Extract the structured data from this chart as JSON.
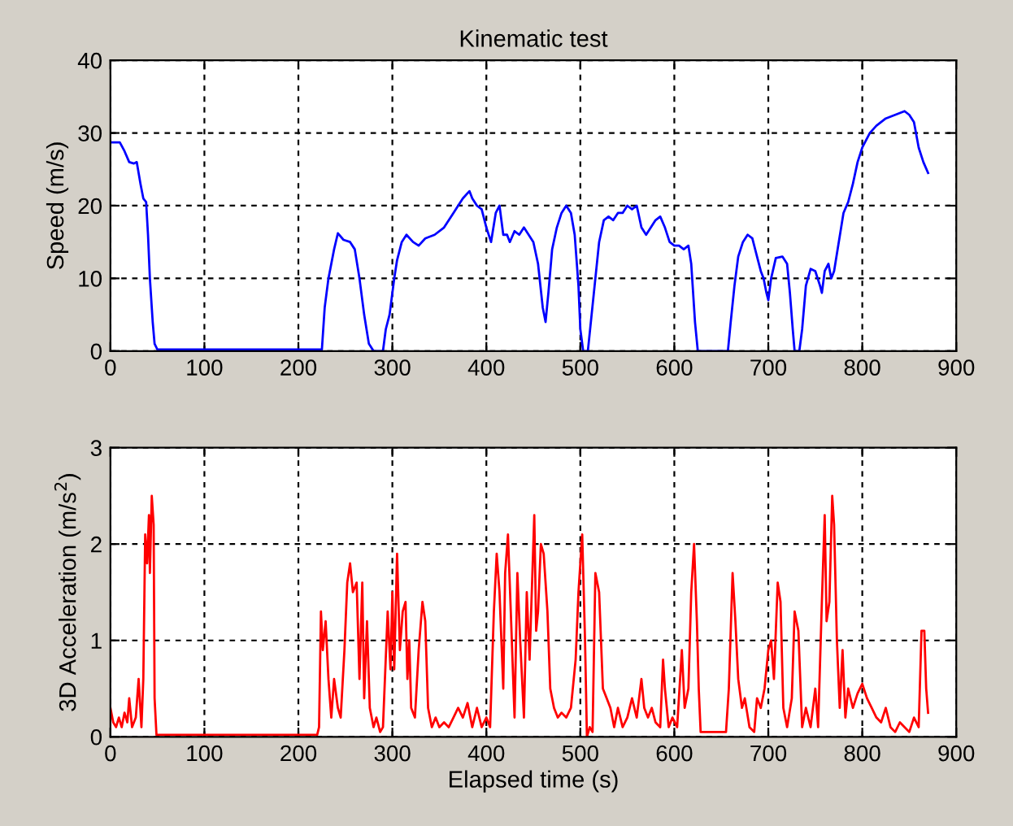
{
  "chart_data": [
    {
      "type": "line",
      "title": "Kinematic test",
      "ylabel": "Speed (m/s)",
      "xlim": [
        0,
        900
      ],
      "ylim": [
        0,
        40
      ],
      "xticks": [
        0,
        100,
        200,
        300,
        400,
        500,
        600,
        700,
        800,
        900
      ],
      "yticks": [
        0,
        10,
        20,
        30,
        40
      ],
      "grid": true,
      "marker": "none",
      "line_style": "solid",
      "series": [
        {
          "color": "#0000ff",
          "x": [
            0,
            10,
            15,
            20,
            25,
            28,
            32,
            35,
            38,
            40,
            42,
            45,
            47,
            50,
            100,
            200,
            225,
            228,
            232,
            238,
            242,
            248,
            255,
            260,
            265,
            270,
            275,
            280,
            290,
            293,
            297,
            302,
            305,
            310,
            315,
            322,
            328,
            335,
            345,
            355,
            365,
            375,
            382,
            385,
            390,
            395,
            400,
            405,
            410,
            414,
            418,
            422,
            425,
            430,
            435,
            440,
            445,
            450,
            455,
            460,
            463,
            466,
            470,
            475,
            480,
            485,
            490,
            494,
            498,
            500,
            503,
            508,
            512,
            516,
            520,
            525,
            530,
            535,
            540,
            545,
            550,
            555,
            560,
            565,
            570,
            575,
            580,
            585,
            590,
            595,
            600,
            605,
            610,
            615,
            618,
            620,
            622,
            625,
            657,
            660,
            664,
            668,
            673,
            678,
            683,
            688,
            692,
            695,
            698,
            700,
            703,
            708,
            715,
            720,
            723,
            726,
            728,
            733,
            736,
            740,
            745,
            750,
            755,
            757,
            760,
            764,
            767,
            770,
            775,
            780,
            785,
            790,
            795,
            800,
            808,
            815,
            825,
            835,
            845,
            850,
            855,
            860,
            865,
            870
          ],
          "values": [
            28.7,
            28.7,
            27.5,
            26,
            25.8,
            26,
            23,
            21,
            20.5,
            16,
            10,
            4,
            1,
            0.2,
            0.2,
            0.2,
            0.2,
            6,
            10,
            14,
            16.2,
            15.3,
            15,
            14,
            10,
            5,
            1,
            0,
            0,
            3,
            5,
            10,
            12.5,
            15,
            16,
            15,
            14.5,
            15.5,
            16,
            17,
            19,
            21,
            22,
            21,
            20,
            19.5,
            17,
            15,
            19,
            20,
            16,
            16,
            15,
            16.5,
            16,
            17,
            16,
            15,
            12,
            6,
            4,
            8,
            14,
            17,
            19,
            20,
            19,
            16,
            9,
            3,
            0,
            0,
            5,
            10,
            15,
            18,
            18.5,
            18,
            19,
            19,
            20,
            19.5,
            20,
            17,
            16,
            17,
            18,
            18.5,
            17,
            15,
            14.5,
            14.5,
            14,
            14.5,
            12,
            8,
            4,
            0,
            0,
            4,
            9,
            13,
            15,
            16,
            15.5,
            13,
            11,
            10,
            8,
            7,
            10,
            12.8,
            13,
            12,
            8,
            3,
            0,
            0,
            3,
            9,
            11.3,
            11,
            9,
            8,
            11,
            12,
            10,
            11,
            15,
            19,
            20.5,
            23,
            26,
            28,
            30,
            31,
            32,
            32.5,
            33,
            32.5,
            31.5,
            28,
            26,
            24.5
          ]
        }
      ]
    },
    {
      "type": "line",
      "xlabel": "Elapsed time (s)",
      "ylabel": "3D Acceleration (m/s$^{2}$)",
      "xlim": [
        0,
        900
      ],
      "ylim": [
        0,
        3
      ],
      "xticks": [
        0,
        100,
        200,
        300,
        400,
        500,
        600,
        700,
        800,
        900
      ],
      "yticks": [
        0,
        1,
        2,
        3
      ],
      "grid": true,
      "marker": "none",
      "line_style": "solid",
      "series": [
        {
          "color": "#ff0000",
          "x": [
            0,
            3,
            6,
            9,
            12,
            15,
            18,
            20,
            23,
            27,
            30,
            33,
            35,
            37,
            39,
            41,
            42,
            44,
            46,
            47,
            49,
            220,
            222,
            224,
            226,
            229,
            232,
            235,
            238,
            242,
            245,
            249,
            252,
            255,
            258,
            262,
            265,
            268,
            270,
            273,
            276,
            280,
            283,
            287,
            290,
            295,
            298,
            300,
            302,
            305,
            308,
            311,
            314,
            316,
            318,
            320,
            324,
            328,
            332,
            335,
            338,
            342,
            346,
            350,
            355,
            360,
            365,
            370,
            375,
            380,
            385,
            390,
            395,
            400,
            404,
            408,
            411,
            414,
            418,
            420,
            423,
            426,
            430,
            433,
            436,
            440,
            443,
            446,
            449,
            451,
            453,
            455,
            458,
            461,
            465,
            468,
            472,
            476,
            480,
            485,
            490,
            495,
            498,
            502,
            505,
            507,
            510,
            513,
            516,
            520,
            524,
            528,
            532,
            536,
            540,
            545,
            550,
            555,
            560,
            565,
            568,
            572,
            576,
            580,
            585,
            588,
            590,
            594,
            598,
            603,
            608,
            611,
            615,
            618,
            621,
            624,
            626,
            628,
            655,
            658,
            662,
            665,
            668,
            672,
            675,
            680,
            685,
            688,
            692,
            696,
            700,
            703,
            706,
            710,
            713,
            716,
            720,
            725,
            728,
            732,
            736,
            740,
            745,
            750,
            753,
            757,
            760,
            762,
            765,
            768,
            770,
            773,
            776,
            779,
            782,
            785,
            790,
            795,
            800,
            805,
            810,
            815,
            820,
            825,
            830,
            835,
            840,
            845,
            850,
            855,
            860,
            863,
            866,
            868,
            870
          ],
          "values": [
            0.3,
            0.15,
            0.1,
            0.2,
            0.1,
            0.25,
            0.15,
            0.4,
            0.1,
            0.2,
            0.6,
            0.1,
            0.6,
            2.1,
            1.8,
            2.3,
            1.7,
            2.5,
            2.2,
            0.4,
            0.02,
            0.02,
            0.1,
            1.3,
            0.9,
            1.2,
            0.6,
            0.2,
            0.6,
            0.3,
            0.2,
            0.9,
            1.6,
            1.8,
            1.5,
            1.6,
            0.6,
            1.6,
            0.4,
            1.2,
            0.3,
            0.1,
            0.2,
            0.05,
            0.1,
            1.3,
            0.7,
            1.5,
            0.7,
            1.9,
            0.9,
            1.3,
            1.4,
            0.6,
            1.0,
            0.3,
            0.2,
            0.9,
            1.4,
            1.2,
            0.3,
            0.1,
            0.2,
            0.1,
            0.15,
            0.1,
            0.2,
            0.3,
            0.2,
            0.35,
            0.1,
            0.3,
            0.1,
            0.2,
            0.1,
            1.3,
            1.9,
            1.5,
            0.5,
            1.7,
            2.1,
            1.3,
            0.2,
            1.7,
            1.0,
            0.2,
            1.5,
            0.8,
            1.7,
            2.3,
            1.1,
            1.3,
            2.0,
            1.9,
            1.3,
            0.5,
            0.3,
            0.2,
            0.25,
            0.2,
            0.3,
            0.8,
            1.5,
            2.1,
            1.0,
            0.0,
            0.1,
            0.05,
            1.7,
            1.5,
            0.5,
            0.4,
            0.3,
            0.1,
            0.3,
            0.1,
            0.2,
            0.4,
            0.2,
            0.6,
            0.3,
            0.2,
            0.3,
            0.15,
            0.1,
            0.8,
            0.5,
            0.1,
            0.2,
            0.1,
            0.9,
            0.3,
            0.5,
            1.5,
            2.0,
            1.2,
            0.5,
            0.05,
            0.05,
            0.5,
            1.7,
            1.2,
            0.6,
            0.3,
            0.4,
            0.1,
            0.05,
            0.4,
            0.3,
            0.5,
            0.9,
            1.0,
            0.6,
            1.6,
            1.4,
            0.3,
            0.1,
            0.4,
            1.3,
            1.1,
            0.1,
            0.3,
            0.1,
            0.5,
            0.1,
            1.4,
            2.3,
            1.2,
            1.4,
            2.5,
            2.2,
            1.0,
            0.3,
            0.9,
            0.2,
            0.5,
            0.3,
            0.45,
            0.55,
            0.4,
            0.3,
            0.2,
            0.15,
            0.3,
            0.1,
            0.05,
            0.15,
            0.1,
            0.05,
            0.2,
            0.1,
            1.1,
            1.1,
            0.5,
            0.25
          ]
        }
      ]
    }
  ]
}
